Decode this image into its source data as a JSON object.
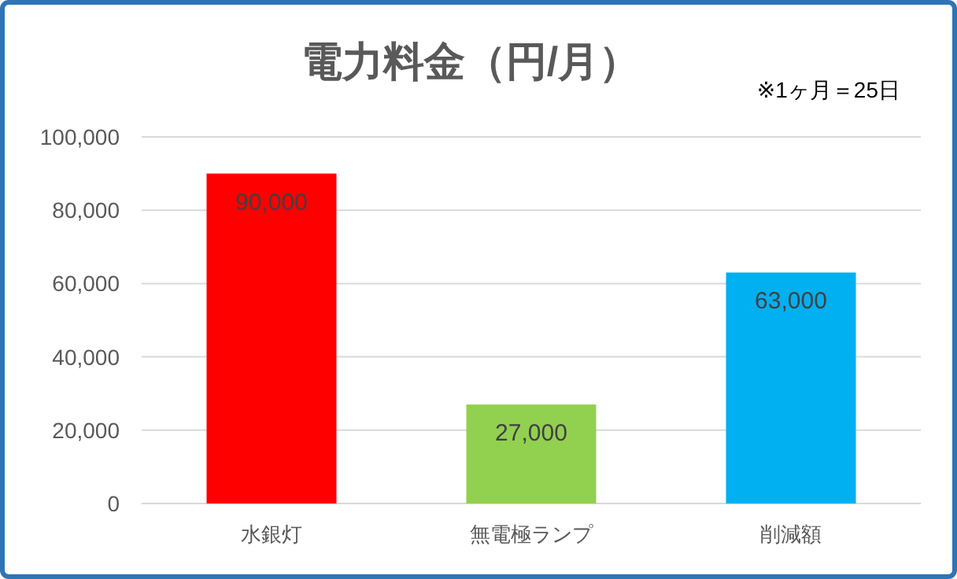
{
  "chart_data": {
    "type": "bar",
    "title": "電力料金（円/月）",
    "annotations": [
      "※1ヶ月＝25日"
    ],
    "categories": [
      "水銀灯",
      "無電極ランプ",
      "削減額"
    ],
    "values": [
      90000,
      27000,
      63000
    ],
    "colors": [
      "#ff0000",
      "#92d050",
      "#00b0f0"
    ],
    "ylim": [
      0,
      100000
    ],
    "yticks": [
      {
        "value": 0,
        "label": "0"
      },
      {
        "value": 20000,
        "label": "20,000"
      },
      {
        "value": 40000,
        "label": "40,000"
      },
      {
        "value": 60000,
        "label": "60,000"
      },
      {
        "value": 80000,
        "label": "80,000"
      },
      {
        "value": 100000,
        "label": "100,000"
      }
    ],
    "value_labels": [
      "90,000",
      "27,000",
      "63,000"
    ],
    "grid": "y"
  }
}
